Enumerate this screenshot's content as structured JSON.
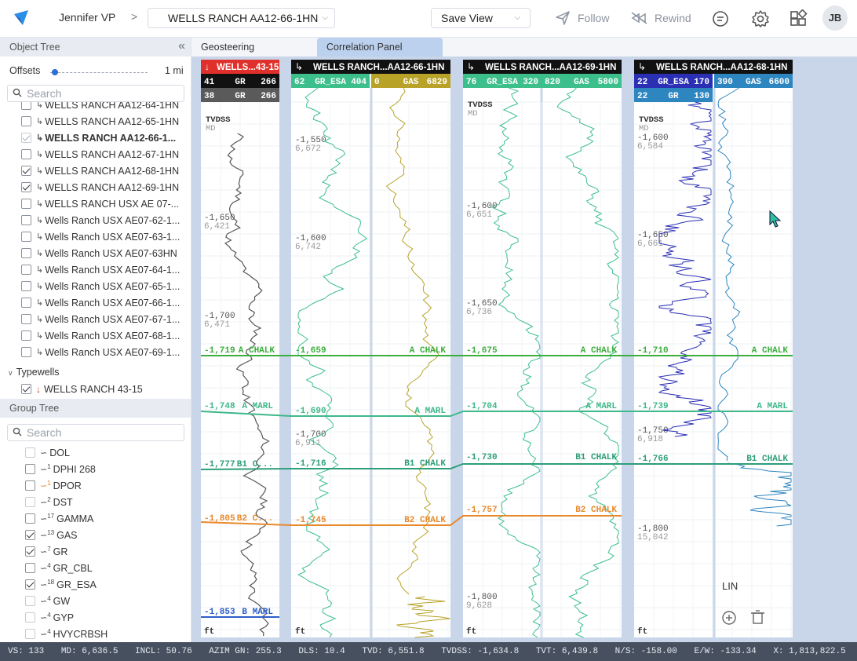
{
  "topbar": {
    "user": "Jennifer VP",
    "separator": ">",
    "well_select": "WELLS RANCH AA12-66-1HN",
    "save_view": "Save View",
    "follow": "Follow",
    "rewind": "Rewind",
    "avatar": "JB"
  },
  "object_tree": {
    "title": "Object Tree",
    "offsets_label": "Offsets",
    "offsets_value": "1 mi",
    "search_placeholder": "Search",
    "items": [
      {
        "label": "WELLS RANCH AA12-64-1HN",
        "checked": false
      },
      {
        "label": "WELLS RANCH AA12-65-1HN",
        "checked": false
      },
      {
        "label": "WELLS RANCH AA12-66-1...",
        "checked": true,
        "bold": true,
        "disabled": true
      },
      {
        "label": "WELLS RANCH AA12-67-1HN",
        "checked": false
      },
      {
        "label": "WELLS RANCH AA12-68-1HN",
        "checked": true
      },
      {
        "label": "WELLS RANCH AA12-69-1HN",
        "checked": true
      },
      {
        "label": "WELLS RANCH USX AE 07-...",
        "checked": false
      },
      {
        "label": "Wells Ranch USX AE07-62-1...",
        "checked": false
      },
      {
        "label": "Wells Ranch USX AE07-63-1...",
        "checked": false
      },
      {
        "label": "Wells Ranch USX AE07-63HN",
        "checked": false
      },
      {
        "label": "Wells Ranch USX AE07-64-1...",
        "checked": false
      },
      {
        "label": "Wells Ranch USX AE07-65-1...",
        "checked": false
      },
      {
        "label": "Wells Ranch USX AE07-66-1...",
        "checked": false
      },
      {
        "label": "Wells Ranch USX AE07-67-1...",
        "checked": false
      },
      {
        "label": "Wells Ranch USX AE07-68-1...",
        "checked": false
      },
      {
        "label": "Wells Ranch USX AE07-69-1...",
        "checked": false
      }
    ],
    "typewells_label": "Typewells",
    "typewell": {
      "label": "WELLS RANCH 43-15",
      "checked": true
    }
  },
  "group_tree": {
    "title": "Group Tree",
    "search_placeholder": "Search",
    "items": [
      {
        "count": "",
        "label": "DOL",
        "checked": false,
        "disabled": true,
        "color": "#444444"
      },
      {
        "count": "1",
        "label": "DPHI 268",
        "checked": false,
        "color": "#444444"
      },
      {
        "count": "1",
        "label": "DPOR",
        "checked": false,
        "color": "#e8892c"
      },
      {
        "count": "2",
        "label": "DST",
        "checked": false,
        "disabled": true,
        "color": "#444444"
      },
      {
        "count": "17",
        "label": "GAMMA",
        "checked": false,
        "color": "#444444"
      },
      {
        "count": "13",
        "label": "GAS",
        "checked": true,
        "color": "#444444"
      },
      {
        "count": "7",
        "label": "GR",
        "checked": true,
        "color": "#444444"
      },
      {
        "count": "4",
        "label": "GR_CBL",
        "checked": false,
        "color": "#444444"
      },
      {
        "count": "18",
        "label": "GR_ESA",
        "checked": true,
        "color": "#444444"
      },
      {
        "count": "4",
        "label": "GW",
        "checked": false,
        "disabled": true,
        "color": "#444444"
      },
      {
        "count": "4",
        "label": "GYP",
        "checked": false,
        "disabled": true,
        "color": "#444444"
      },
      {
        "count": "4",
        "label": "HVYCRBSH",
        "checked": false,
        "disabled": true,
        "color": "#444444"
      }
    ]
  },
  "tabs": {
    "geosteering": "Geosteering",
    "correlation": "Correlation Panel"
  },
  "colors": {
    "chalk": "#3cae3c",
    "marl": "#3fb88a",
    "b1": "#2e9e7a",
    "b2": "#e8892c",
    "bmarl": "#2c5ec8",
    "gr_esa": "#3dbf8c",
    "gas": "#b8a328",
    "gr": "#555555",
    "deep": "#2a2fb4",
    "blue": "#2e86c1"
  },
  "tracks": [
    {
      "header": "WELLS...43-15",
      "header_bg": "#e0302b",
      "curves": [
        {
          "min": "41",
          "name": "GR",
          "max": "266",
          "bg": "#111111"
        },
        {
          "min": "38",
          "name": "GR",
          "max": "266",
          "bg": "#5a5a5a"
        }
      ],
      "tvdss": "TVDSS",
      "md": "MD",
      "depths": [
        [
          "-1,650",
          "6,421"
        ],
        [
          "-1,700",
          "6,471"
        ]
      ],
      "tops": [
        "-1,719",
        "A CHALK",
        "-1,748",
        "A MARL",
        "-1,777",
        "B1 C...",
        "-1,805",
        "B2 C...",
        "-1,853",
        "B MARL"
      ],
      "unit": "ft"
    },
    {
      "header": "WELLS RANCH...AA12-66-1HN",
      "header_bg": "#111111",
      "curves": [
        {
          "min": "62",
          "name": "GR_ESA",
          "max": "404",
          "bg": "#3dbf8c"
        },
        {
          "min": "0",
          "name": "GAS",
          "max": "6829",
          "bg": "#b8a328"
        }
      ],
      "depths": [
        [
          "-1,550",
          "6,672"
        ],
        [
          "-1,600",
          "6,742"
        ],
        [
          "-1,700",
          "6,911"
        ]
      ],
      "tops": [
        "-1,659",
        "A CHALK",
        "-1,690",
        "A MARL",
        "-1,716",
        "B1 CHALK",
        "-1,745",
        "B2 CHALK"
      ],
      "unit": "ft"
    },
    {
      "header": "WELLS RANCH...AA12-69-1HN",
      "header_bg": "#111111",
      "curves": [
        {
          "min": "76",
          "name": "GR_ESA",
          "max": "320",
          "bg": "#3dbf8c"
        },
        {
          "min": "820",
          "name": "GAS",
          "max": "5800",
          "bg": "#3dbf8c"
        }
      ],
      "tvdss": "TVDSS",
      "md": "MD",
      "depths": [
        [
          "-1,600",
          "6,651"
        ],
        [
          "-1,650",
          "6,736"
        ],
        [
          "-1,800",
          "9,628"
        ]
      ],
      "tops": [
        "-1,675",
        "A CHALK",
        "-1,704",
        "A MARL",
        "-1,730",
        "B1 CHALK",
        "-1,757",
        "B2 CHALK"
      ],
      "unit": "ft"
    },
    {
      "header": "WELLS RANCH...AA12-68-1HN",
      "header_bg": "#111111",
      "curves": [
        {
          "min": "22",
          "name": "GR_ESA",
          "max": "170",
          "bg": "#2a2fb4"
        },
        {
          "min": "390",
          "name": "GAS",
          "max": "6600",
          "bg": "#2e86c1"
        },
        {
          "min": "22",
          "name": "GR",
          "max": "130",
          "bg": "#2e86c1"
        }
      ],
      "tvdss": "TVDSS",
      "md": "MD",
      "depths": [
        [
          "-1,600",
          "6,584"
        ],
        [
          "-1,650",
          "6,661"
        ],
        [
          "-1,750",
          "6,918"
        ],
        [
          "-1,800",
          "15,042"
        ]
      ],
      "tops": [
        "-1,710",
        "A CHALK",
        "-1,739",
        "A MARL",
        "-1,766",
        "B1 CHALK"
      ],
      "unit": "ft",
      "scale_label": "LIN"
    }
  ],
  "status": {
    "vs": "VS: 133",
    "md": "MD: 6,636.5",
    "incl": "INCL: 50.76",
    "azim": "AZIM GN: 255.3",
    "dls": "DLS: 10.4",
    "tvd": "TVD: 6,551.8",
    "tvdss": "TVDSS: -1,634.8",
    "tvt": "TVT: 6,439.8",
    "ns": "N/S: -158.00",
    "ew": "E/W: -133.34",
    "x": "X: 1,813,822.5",
    "y": "Y:"
  }
}
